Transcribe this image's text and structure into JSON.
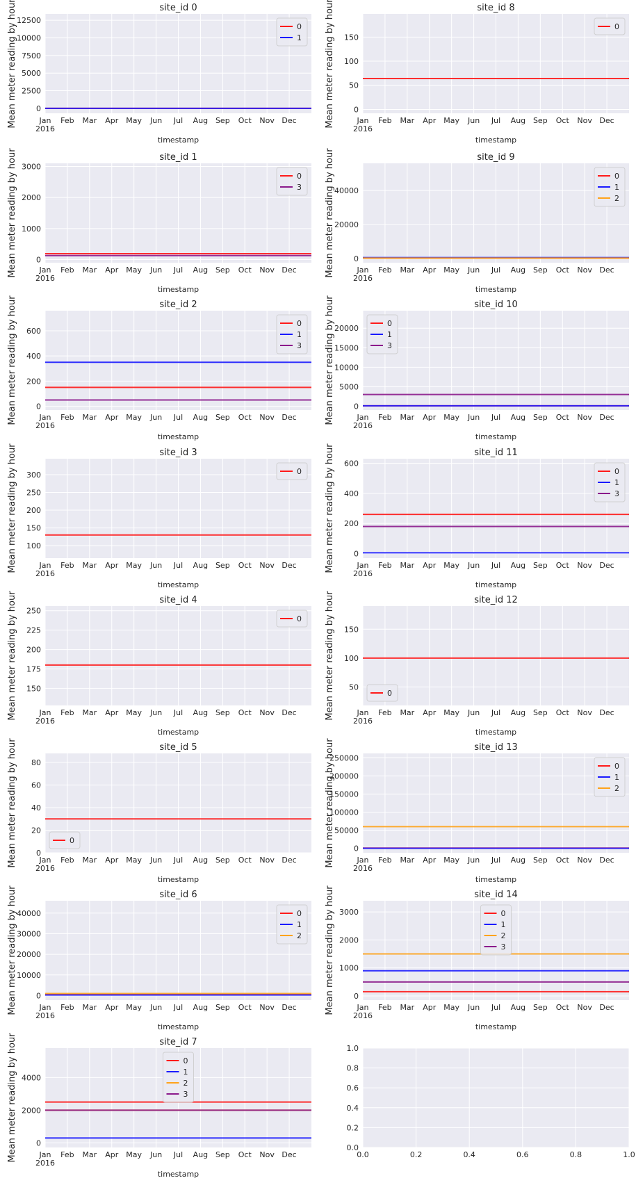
{
  "colors": {
    "plot_bg": "#eaeaf2",
    "grid": "#ffffff",
    "series": {
      "0": "#ff1a1a",
      "1": "#1a1aff",
      "2": "#ffa31a",
      "3": "#8b1a8b"
    }
  },
  "shared": {
    "xlabel": "timestamp",
    "ylabel": "Mean meter reading by hour",
    "month_ticks": [
      "Jan",
      "Feb",
      "Mar",
      "Apr",
      "May",
      "Jun",
      "Jul",
      "Aug",
      "Sep",
      "Oct",
      "Nov",
      "Dec"
    ],
    "year_label": "2016"
  },
  "chart_data": [
    {
      "type": "line",
      "title": "site_id 0",
      "ylim": [
        -700,
        13400
      ],
      "yticks": [
        0,
        2500,
        5000,
        7500,
        10000,
        12500
      ],
      "legend": "top-right",
      "series": [
        {
          "name": "0",
          "color_key": "0",
          "value": 0.2
        },
        {
          "name": "1",
          "color_key": "1",
          "value": 2.9
        }
      ]
    },
    {
      "type": "line",
      "title": "site_id 8",
      "ylim": [
        -8,
        198
      ],
      "yticks": [
        0,
        50,
        100,
        150
      ],
      "legend": "top-right",
      "series": [
        {
          "name": "0",
          "color_key": "0",
          "value": 64
        }
      ]
    },
    {
      "type": "line",
      "title": "site_id 1",
      "ylim": [
        -100,
        3100
      ],
      "yticks": [
        0,
        1000,
        2000,
        3000
      ],
      "legend": "top-right",
      "series": [
        {
          "name": "0",
          "color_key": "0",
          "value": 190
        },
        {
          "name": "3",
          "color_key": "3",
          "value": 130
        }
      ]
    },
    {
      "type": "line",
      "title": "site_id 9",
      "ylim": [
        -2500,
        56000
      ],
      "yticks": [
        0,
        20000,
        40000
      ],
      "legend": "top-right",
      "series": [
        {
          "name": "0",
          "color_key": "0",
          "value": 300
        },
        {
          "name": "1",
          "color_key": "1",
          "value": 500
        },
        {
          "name": "2",
          "color_key": "2",
          "value": 200
        }
      ]
    },
    {
      "type": "line",
      "title": "site_id 2",
      "ylim": [
        -30,
        760
      ],
      "yticks": [
        0,
        200,
        400,
        600
      ],
      "legend": "top-right",
      "series": [
        {
          "name": "0",
          "color_key": "0",
          "value": 150
        },
        {
          "name": "1",
          "color_key": "1",
          "value": 350
        },
        {
          "name": "3",
          "color_key": "3",
          "value": 50
        }
      ]
    },
    {
      "type": "line",
      "title": "site_id 10",
      "ylim": [
        -1000,
        24500
      ],
      "yticks": [
        0,
        5000,
        10000,
        15000,
        20000
      ],
      "legend": "top-left",
      "series": [
        {
          "name": "0",
          "color_key": "0",
          "value": 100
        },
        {
          "name": "1",
          "color_key": "1",
          "value": 100
        },
        {
          "name": "3",
          "color_key": "3",
          "value": 3000
        }
      ]
    },
    {
      "type": "line",
      "title": "site_id 3",
      "ylim": [
        65,
        345
      ],
      "yticks": [
        100,
        150,
        200,
        250,
        300
      ],
      "legend": "top-right",
      "series": [
        {
          "name": "0",
          "color_key": "0",
          "value": 130
        }
      ]
    },
    {
      "type": "line",
      "title": "site_id 11",
      "ylim": [
        -30,
        630
      ],
      "yticks": [
        0,
        200,
        400,
        600
      ],
      "legend": "top-right",
      "series": [
        {
          "name": "0",
          "color_key": "0",
          "value": 260
        },
        {
          "name": "1",
          "color_key": "1",
          "value": 5
        },
        {
          "name": "3",
          "color_key": "3",
          "value": 180
        }
      ]
    },
    {
      "type": "line",
      "title": "site_id 4",
      "ylim": [
        128,
        256
      ],
      "yticks": [
        150,
        175,
        200,
        225,
        250
      ],
      "legend": "top-right",
      "series": [
        {
          "name": "0",
          "color_key": "0",
          "value": 180
        }
      ]
    },
    {
      "type": "line",
      "title": "site_id 12",
      "ylim": [
        18,
        190
      ],
      "yticks": [
        50,
        100,
        150
      ],
      "legend": "bottom-left",
      "series": [
        {
          "name": "0",
          "color_key": "0",
          "value": 100
        }
      ]
    },
    {
      "type": "line",
      "title": "site_id 5",
      "ylim": [
        0,
        88
      ],
      "yticks": [
        0,
        20,
        40,
        60,
        80
      ],
      "legend": "bottom-left",
      "series": [
        {
          "name": "0",
          "color_key": "0",
          "value": 30
        }
      ]
    },
    {
      "type": "line",
      "title": "site_id 13",
      "ylim": [
        -12000,
        262000
      ],
      "yticks": [
        0,
        50000,
        100000,
        150000,
        200000,
        250000
      ],
      "legend": "top-right",
      "series": [
        {
          "name": "0",
          "color_key": "0",
          "value": 1000
        },
        {
          "name": "1",
          "color_key": "1",
          "value": 500
        },
        {
          "name": "2",
          "color_key": "2",
          "value": 60000
        }
      ]
    },
    {
      "type": "line",
      "title": "site_id 6",
      "ylim": [
        -2200,
        46000
      ],
      "yticks": [
        0,
        10000,
        20000,
        30000,
        40000
      ],
      "legend": "top-right",
      "series": [
        {
          "name": "0",
          "color_key": "0",
          "value": 500
        },
        {
          "name": "1",
          "color_key": "1",
          "value": 300
        },
        {
          "name": "2",
          "color_key": "2",
          "value": 1000
        }
      ]
    },
    {
      "type": "line",
      "title": "site_id 14",
      "ylim": [
        -150,
        3400
      ],
      "yticks": [
        0,
        1000,
        2000,
        3000
      ],
      "legend": "top-center",
      "series": [
        {
          "name": "0",
          "color_key": "0",
          "value": 150
        },
        {
          "name": "1",
          "color_key": "1",
          "value": 900
        },
        {
          "name": "2",
          "color_key": "2",
          "value": 1500
        },
        {
          "name": "3",
          "color_key": "3",
          "value": 500
        }
      ]
    },
    {
      "type": "line",
      "title": "site_id 7",
      "ylim": [
        -280,
        5800
      ],
      "yticks": [
        0,
        2000,
        4000
      ],
      "legend": "top-center",
      "series": [
        {
          "name": "0",
          "color_key": "0",
          "value": 2500
        },
        {
          "name": "1",
          "color_key": "1",
          "value": 300
        },
        {
          "name": "2",
          "color_key": "2",
          "value": 2000
        },
        {
          "name": "3",
          "color_key": "3",
          "value": 2000
        }
      ]
    },
    {
      "type": "line",
      "title": "",
      "empty": true,
      "xlim": [
        0,
        1
      ],
      "ylim": [
        0,
        1
      ],
      "xticks": [
        "0.0",
        "0.2",
        "0.4",
        "0.6",
        "0.8",
        "1.0"
      ],
      "yticks": [
        "0.0",
        "0.2",
        "0.4",
        "0.6",
        "0.8",
        "1.0"
      ],
      "series": []
    }
  ]
}
